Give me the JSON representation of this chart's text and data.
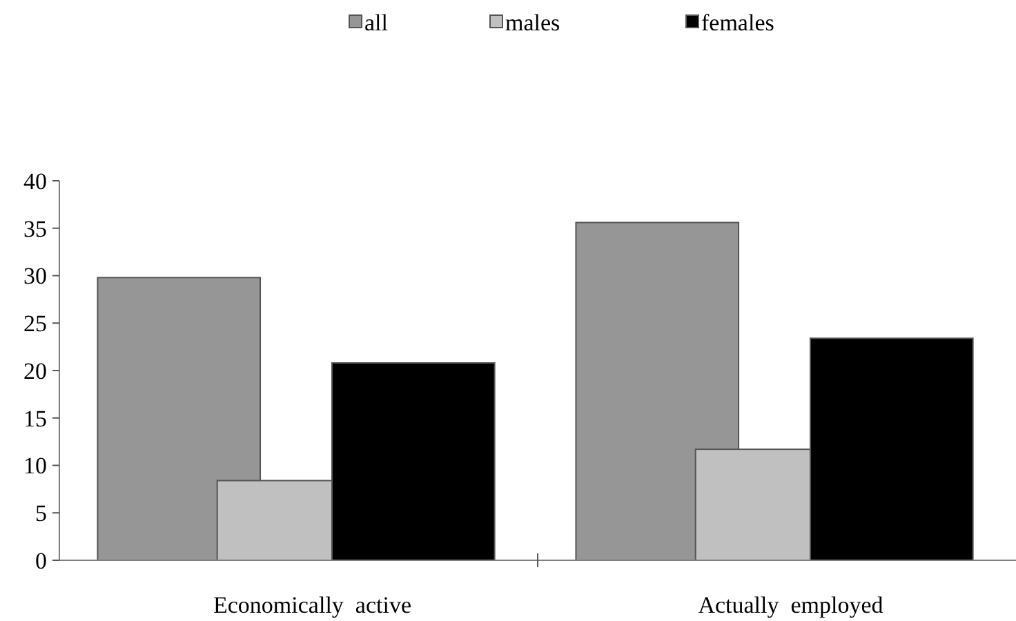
{
  "chart_data": {
    "type": "bar",
    "categories": [
      "Economically  active",
      "Actually  employed"
    ],
    "series": [
      {
        "name": "all",
        "color": "#969696",
        "values": [
          29.8,
          35.6
        ]
      },
      {
        "name": "males",
        "color": "#c0c0c0",
        "values": [
          8.4,
          11.7
        ]
      },
      {
        "name": "females",
        "color": "#000000",
        "values": [
          20.8,
          23.4
        ]
      }
    ],
    "ylim": [
      0,
      40
    ],
    "yticks": [
      0,
      5,
      10,
      15,
      20,
      25,
      30,
      35,
      40
    ],
    "grid": false,
    "legend": "top"
  }
}
